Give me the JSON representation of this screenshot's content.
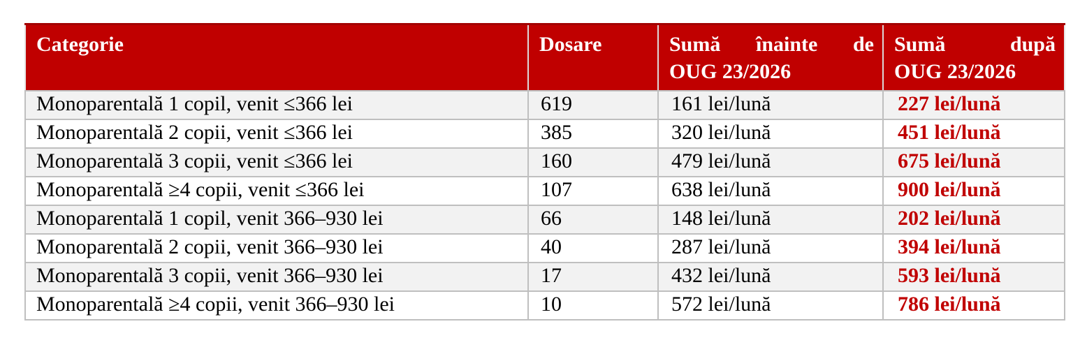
{
  "table": {
    "header": {
      "categorie": "Categorie",
      "dosare": "Dosare",
      "suma_inainte": {
        "w1": "Sumă",
        "w2": "înainte",
        "w3": "de",
        "line2": "OUG 23/2026"
      },
      "suma_dupa": {
        "w1": "Sumă",
        "w2": "după",
        "line2": "OUG 23/2026"
      }
    },
    "rows": [
      {
        "categorie": "Monoparentală 1 copil, venit ≤366 lei",
        "dosare": "619",
        "suma_inainte": "161 lei/lună",
        "suma_dupa": "227 lei/lună"
      },
      {
        "categorie": "Monoparentală 2 copii, venit ≤366 lei",
        "dosare": "385",
        "suma_inainte": "320 lei/lună",
        "suma_dupa": "451 lei/lună"
      },
      {
        "categorie": "Monoparentală 3 copii, venit ≤366 lei",
        "dosare": "160",
        "suma_inainte": "479 lei/lună",
        "suma_dupa": "675 lei/lună"
      },
      {
        "categorie": "Monoparentală ≥4 copii, venit ≤366 lei",
        "dosare": "107",
        "suma_inainte": "638 lei/lună",
        "suma_dupa": "900 lei/lună"
      },
      {
        "categorie": "Monoparentală 1 copil, venit 366–930 lei",
        "dosare": "66",
        "suma_inainte": "148 lei/lună",
        "suma_dupa": "202 lei/lună"
      },
      {
        "categorie": "Monoparentală 2 copii, venit 366–930 lei",
        "dosare": "40",
        "suma_inainte": "287 lei/lună",
        "suma_dupa": "394 lei/lună"
      },
      {
        "categorie": "Monoparentală 3 copii, venit 366–930 lei",
        "dosare": "17",
        "suma_inainte": "432 lei/lună",
        "suma_dupa": "593 lei/lună"
      },
      {
        "categorie": "Monoparentală ≥4 copii, venit 366–930 lei",
        "dosare": "10",
        "suma_inainte": "572 lei/lună",
        "suma_dupa": "786 lei/lună"
      }
    ]
  },
  "colors": {
    "header_bg": "#C00000",
    "header_text": "#FFFFFF",
    "header_top_border": "#A30000",
    "header_divider": "#DCD9D9",
    "accent_red": "#C00000",
    "row_alt_bg": "#F2F2F2",
    "row_bg": "#FFFFFF",
    "body_border": "#BFBFBF",
    "body_text": "#000000"
  }
}
